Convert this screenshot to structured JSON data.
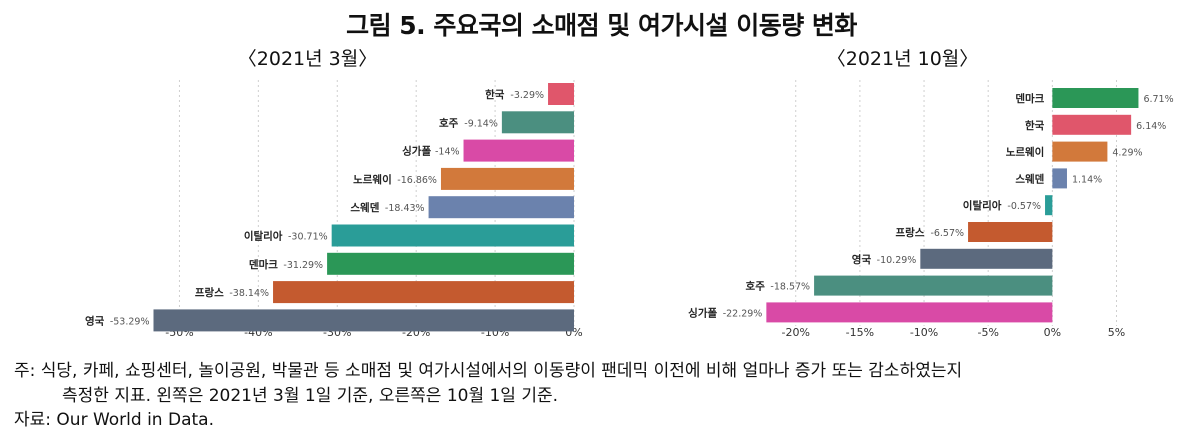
{
  "figure": {
    "title": "그림 5. 주요국의 소매점 및 여가시설 이동량 변화",
    "note_line1": "주: 식당, 카페, 쇼핑센터, 놀이공원, 박물관 등 소매점 및 여가시설에서의 이동량이 팬데믹 이전에 비해 얼마나 증가 또는 감소하였는지",
    "note_line2": "측정한 지표. 왼쪽은 2021년 3월 1일 기준, 오른쪽은 10월 1일 기준.",
    "source": "자료: Our World in Data."
  },
  "chart_data": [
    {
      "type": "bar",
      "orientation": "horizontal",
      "subtitle": "〈2021년 3월〉",
      "categories": [
        "한국",
        "호주",
        "싱가폴",
        "노르웨이",
        "스웨덴",
        "이탈리아",
        "덴마크",
        "프랑스",
        "영국"
      ],
      "values": [
        -3.29,
        -9.14,
        -14,
        -16.86,
        -18.43,
        -30.71,
        -31.29,
        -38.14,
        -53.29
      ],
      "value_labels": [
        "-3.29%",
        "-9.14%",
        "-14%",
        "-16.86%",
        "-18.43%",
        "-30.71%",
        "-31.29%",
        "-38.14%",
        "-53.29%"
      ],
      "colors": [
        "#e0566b",
        "#4b8f80",
        "#d94aa6",
        "#d2793b",
        "#6b82ad",
        "#2a9d98",
        "#2b9757",
        "#c45a2f",
        "#5c6a7e"
      ],
      "xlim": [
        -55,
        0
      ],
      "xticks": [
        -50,
        -40,
        -30,
        -20,
        -10,
        0
      ],
      "xtick_labels": [
        "-50%",
        "-40%",
        "-30%",
        "-20%",
        "-10%",
        "0%"
      ],
      "grid": true
    },
    {
      "type": "bar",
      "orientation": "horizontal",
      "subtitle": "〈2021년 10월〉",
      "categories": [
        "덴마크",
        "한국",
        "노르웨이",
        "스웨덴",
        "이탈리아",
        "프랑스",
        "영국",
        "호주",
        "싱가폴"
      ],
      "values": [
        6.71,
        6.14,
        4.29,
        1.14,
        -0.57,
        -6.57,
        -10.29,
        -18.57,
        -22.29
      ],
      "value_labels": [
        "6.71%",
        "6.14%",
        "4.29%",
        "1.14%",
        "-0.57%",
        "-6.57%",
        "-10.29%",
        "-18.57%",
        "-22.29%"
      ],
      "colors": [
        "#2b9757",
        "#e0566b",
        "#d2793b",
        "#6b82ad",
        "#2a9d98",
        "#c45a2f",
        "#5c6a7e",
        "#4b8f80",
        "#d94aa6"
      ],
      "xlim": [
        -24.5,
        8
      ],
      "xticks": [
        -20,
        -15,
        -10,
        -5,
        0,
        5
      ],
      "xtick_labels": [
        "-20%",
        "-15%",
        "-10%",
        "-5%",
        "0%",
        "5%"
      ],
      "grid": true
    }
  ]
}
